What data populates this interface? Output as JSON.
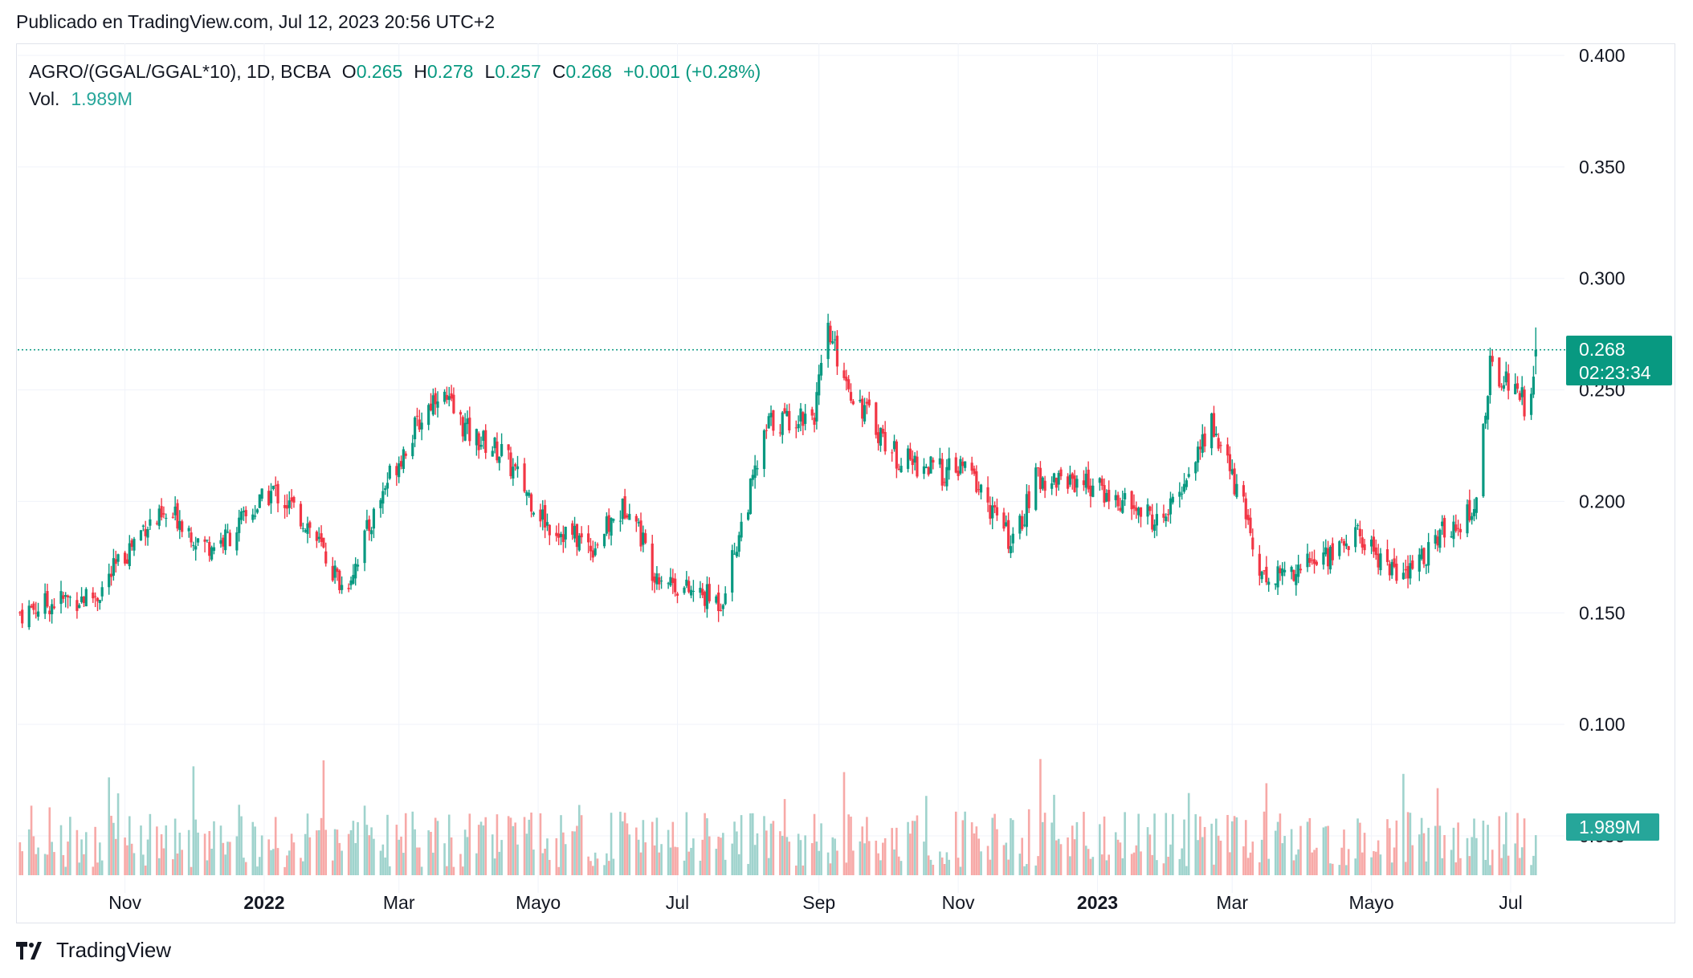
{
  "header": {
    "published": "Publicado en TradingView.com, Jul 12, 2023 20:56 UTC+2"
  },
  "legend": {
    "symbol": "AGRO/(GGAL/GGAL*10), 1D, BCBA",
    "o_label": "O",
    "o_value": "0.265",
    "h_label": "H",
    "h_value": "0.278",
    "l_label": "L",
    "l_value": "0.257",
    "c_label": "C",
    "c_value": "0.268",
    "change": "+0.001 (+0.28%)",
    "vol_label": "Vol.",
    "vol_value": "1.989M"
  },
  "price_tag": {
    "price": "0.268",
    "countdown": "02:23:34"
  },
  "volume_tag": {
    "value": "1.989M"
  },
  "footer": {
    "brand": "TradingView"
  },
  "colors": {
    "up": "#089981",
    "down": "#f23645",
    "vol_up": "#9fd3cd",
    "vol_down": "#f7a9a7",
    "grid": "#f0f3fa"
  },
  "chart_data": {
    "type": "candlestick",
    "y_axis": {
      "ticks": [
        "0.400",
        "0.350",
        "0.300",
        "0.250",
        "0.200",
        "0.150",
        "0.100",
        "0.050"
      ],
      "range": [
        0.05,
        0.4
      ]
    },
    "x_axis": {
      "ticks": [
        {
          "label": "Nov",
          "date": "2021-11-01",
          "bold": false
        },
        {
          "label": "2022",
          "date": "2022-01-01",
          "bold": true
        },
        {
          "label": "Mar",
          "date": "2022-03-01",
          "bold": false
        },
        {
          "label": "Mayo",
          "date": "2022-05-01",
          "bold": false
        },
        {
          "label": "Jul",
          "date": "2022-07-01",
          "bold": false
        },
        {
          "label": "Sep",
          "date": "2022-09-01",
          "bold": false
        },
        {
          "label": "Nov",
          "date": "2022-11-01",
          "bold": false
        },
        {
          "label": "2023",
          "date": "2023-01-01",
          "bold": true
        },
        {
          "label": "Mar",
          "date": "2023-03-01",
          "bold": false
        },
        {
          "label": "Mayo",
          "date": "2023-05-01",
          "bold": false
        },
        {
          "label": "Jul",
          "date": "2023-07-01",
          "bold": false
        }
      ],
      "range": [
        "2021-09-15",
        "2023-07-20"
      ]
    },
    "last_close": 0.268,
    "close_path": [
      [
        "2021-09-16",
        0.15
      ],
      [
        "2021-10-01",
        0.155
      ],
      [
        "2021-10-20",
        0.158
      ],
      [
        "2021-11-10",
        0.19
      ],
      [
        "2021-11-25",
        0.193
      ],
      [
        "2021-12-05",
        0.18
      ],
      [
        "2021-12-15",
        0.183
      ],
      [
        "2022-01-05",
        0.205
      ],
      [
        "2022-01-20",
        0.19
      ],
      [
        "2022-02-05",
        0.16
      ],
      [
        "2022-02-25",
        0.212
      ],
      [
        "2022-03-18",
        0.25
      ],
      [
        "2022-04-01",
        0.23
      ],
      [
        "2022-04-15",
        0.222
      ],
      [
        "2022-05-05",
        0.19
      ],
      [
        "2022-05-25",
        0.18
      ],
      [
        "2022-06-10",
        0.2
      ],
      [
        "2022-06-20",
        0.17
      ],
      [
        "2022-07-05",
        0.16
      ],
      [
        "2022-07-20",
        0.155
      ],
      [
        "2022-08-10",
        0.235
      ],
      [
        "2022-08-30",
        0.24
      ],
      [
        "2022-09-05",
        0.275
      ],
      [
        "2022-09-15",
        0.25
      ],
      [
        "2022-10-05",
        0.22
      ],
      [
        "2022-10-25",
        0.213
      ],
      [
        "2022-11-05",
        0.215
      ],
      [
        "2022-11-25",
        0.18
      ],
      [
        "2022-12-05",
        0.21
      ],
      [
        "2022-12-25",
        0.21
      ],
      [
        "2023-01-10",
        0.2
      ],
      [
        "2023-01-30",
        0.19
      ],
      [
        "2023-02-20",
        0.235
      ],
      [
        "2023-03-05",
        0.2
      ],
      [
        "2023-03-15",
        0.165
      ],
      [
        "2023-04-10",
        0.175
      ],
      [
        "2023-04-25",
        0.185
      ],
      [
        "2023-05-15",
        0.165
      ],
      [
        "2023-06-05",
        0.19
      ],
      [
        "2023-06-15",
        0.195
      ],
      [
        "2023-06-22",
        0.26
      ],
      [
        "2023-07-05",
        0.25
      ],
      [
        "2023-07-08",
        0.24
      ],
      [
        "2023-07-12",
        0.268
      ]
    ]
  }
}
